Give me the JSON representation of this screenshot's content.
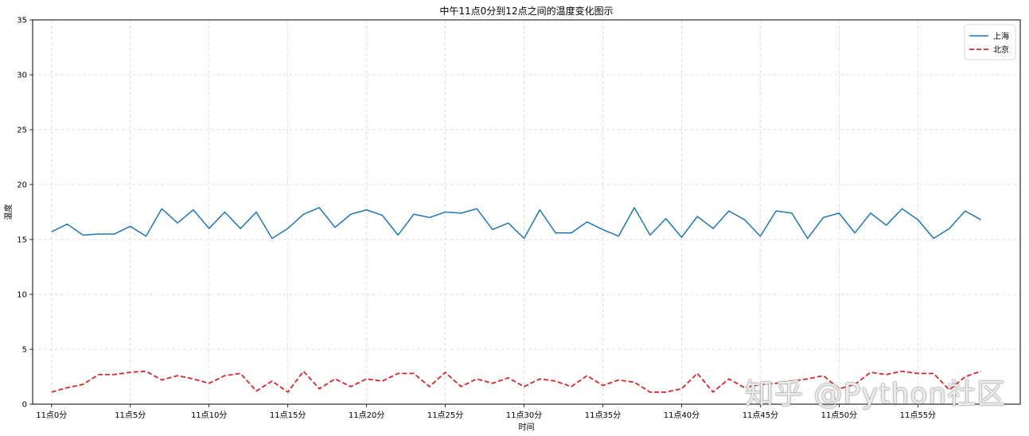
{
  "chart_data": {
    "type": "line",
    "title": "中午11点0分到12点之间的温度变化图示",
    "xlabel": "时间",
    "ylabel": "温度",
    "ylim": [
      0,
      35
    ],
    "yticks": [
      0,
      5,
      10,
      15,
      20,
      25,
      30,
      35
    ],
    "xlim": [
      -1.2,
      61.5
    ],
    "xtick_positions": [
      0,
      5,
      10,
      15,
      20,
      25,
      30,
      35,
      40,
      45,
      50,
      55
    ],
    "xtick_labels": [
      "11点0分",
      "11点5分",
      "11点10分",
      "11点15分",
      "11点20分",
      "11点25分",
      "11点30分",
      "11点35分",
      "11点40分",
      "11点45分",
      "11点50分",
      "11点55分"
    ],
    "grid": true,
    "legend_position": "top-right",
    "x": [
      0,
      1,
      2,
      3,
      4,
      5,
      6,
      7,
      8,
      9,
      10,
      11,
      12,
      13,
      14,
      15,
      16,
      17,
      18,
      19,
      20,
      21,
      22,
      23,
      24,
      25,
      26,
      27,
      28,
      29,
      30,
      31,
      32,
      33,
      34,
      35,
      36,
      37,
      38,
      39,
      40,
      41,
      42,
      43,
      44,
      45,
      46,
      47,
      48,
      49,
      50,
      51,
      52,
      53,
      54,
      55,
      56,
      57,
      58,
      59
    ],
    "series": [
      {
        "name": "上海",
        "color": "#1f77b4",
        "style": "solid",
        "values": [
          15.7,
          16.4,
          15.4,
          15.5,
          15.5,
          16.2,
          15.3,
          17.8,
          16.5,
          17.7,
          16.0,
          17.5,
          16.0,
          17.5,
          15.1,
          16.0,
          17.3,
          17.9,
          16.1,
          17.3,
          17.7,
          17.2,
          15.4,
          17.3,
          17.0,
          17.5,
          17.4,
          17.8,
          15.9,
          16.5,
          15.1,
          17.7,
          15.6,
          15.6,
          16.6,
          15.9,
          15.3,
          17.9,
          15.4,
          16.9,
          15.2,
          17.1,
          16.0,
          17.6,
          16.8,
          15.3,
          17.6,
          17.4,
          15.1,
          17.0,
          17.4,
          15.6,
          17.4,
          16.3,
          17.8,
          16.8,
          15.1,
          16.0,
          17.6,
          16.8
        ]
      },
      {
        "name": "北京",
        "color": "#d62728",
        "style": "dashed",
        "values": [
          1.1,
          1.5,
          1.8,
          2.7,
          2.7,
          2.9,
          3.0,
          2.2,
          2.6,
          2.3,
          1.9,
          2.6,
          2.8,
          1.2,
          2.1,
          1.1,
          3.0,
          1.4,
          2.3,
          1.6,
          2.3,
          2.1,
          2.8,
          2.8,
          1.6,
          2.9,
          1.6,
          2.3,
          1.9,
          2.4,
          1.6,
          2.3,
          2.1,
          1.6,
          2.6,
          1.7,
          2.2,
          2.0,
          1.1,
          1.1,
          1.4,
          2.8,
          1.1,
          2.3,
          1.5,
          1.8,
          1.9,
          2.1,
          2.3,
          2.6,
          1.4,
          1.8,
          2.9,
          2.7,
          3.0,
          2.8,
          2.8,
          1.3,
          2.5,
          3.0
        ]
      }
    ]
  },
  "watermark": "知乎 @Python社区"
}
